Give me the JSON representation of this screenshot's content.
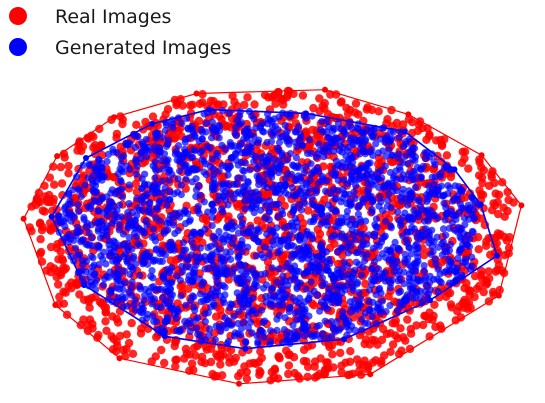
{
  "chart_data": {
    "type": "scatter",
    "title": "",
    "xlabel": "",
    "ylabel": "",
    "axes_visible": false,
    "grid": false,
    "legend_placement": "top-left",
    "series": [
      {
        "name": "Real Images",
        "color": "#ff0000",
        "region": {
          "center": [
            0.0,
            0.0
          ],
          "spread": [
            2.55,
            1.45
          ]
        },
        "hull": [
          [
            -0.84,
            1.36
          ],
          [
            0.58,
            1.4
          ],
          [
            1.5,
            1.14
          ],
          [
            2.31,
            0.71
          ],
          [
            2.75,
            0.18
          ],
          [
            2.5,
            -0.77
          ],
          [
            1.08,
            -1.6
          ],
          [
            -0.37,
            -1.7
          ],
          [
            -1.69,
            -1.43
          ],
          [
            -2.4,
            -0.87
          ],
          [
            -2.75,
            0.04
          ],
          [
            -2.38,
            0.7
          ],
          [
            -1.75,
            1.11
          ]
        ]
      },
      {
        "name": "Generated Images",
        "color": "#0000ff",
        "region": {
          "center": [
            -0.08,
            0.07
          ],
          "spread": [
            2.15,
            1.18
          ]
        },
        "hull": [
          [
            -0.7,
            1.19
          ],
          [
            0.37,
            1.15
          ],
          [
            1.46,
            0.96
          ],
          [
            2.01,
            0.56
          ],
          [
            2.3,
            0.19
          ],
          [
            2.48,
            -0.35
          ],
          [
            1.74,
            -0.82
          ],
          [
            0.79,
            -1.23
          ],
          [
            -0.3,
            -1.33
          ],
          [
            -1.19,
            -1.2
          ],
          [
            -2.08,
            -0.66
          ],
          [
            -2.44,
            0.06
          ],
          [
            -2.06,
            0.68
          ],
          [
            -1.33,
            1.04
          ]
        ]
      }
    ],
    "xlim": [
      -2.9,
      2.9
    ],
    "ylim": [
      -1.85,
      1.65
    ]
  }
}
